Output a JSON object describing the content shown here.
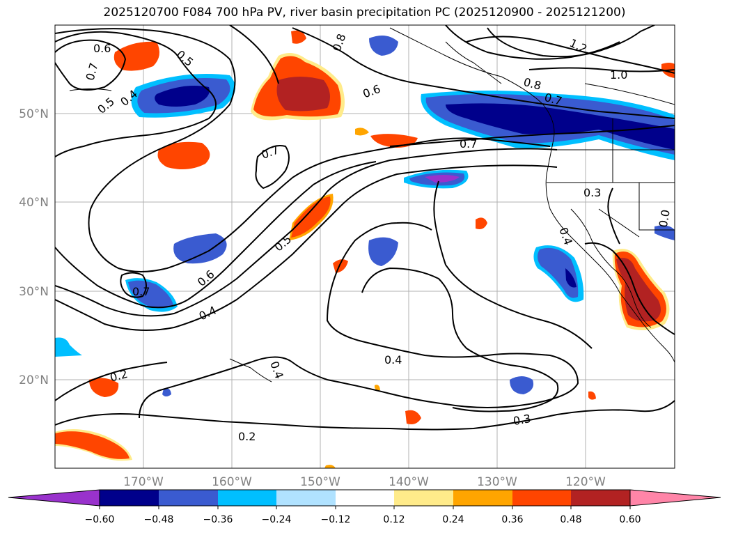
{
  "title": "2025120700 F084 700 hPa PV, river basin precipitation PC (2025120900 - 2025121200)",
  "map": {
    "lon_labels": [
      "170°W",
      "160°W",
      "150°W",
      "140°W",
      "130°W",
      "120°W"
    ],
    "lat_labels": [
      "50°N",
      "40°N",
      "30°N",
      "20°N"
    ],
    "contour_labels": [
      "0.6",
      "0.7",
      "0.5",
      "0.4",
      "0.5",
      "0.8",
      "0.6",
      "1.2",
      "1.0",
      "0.8",
      "0.7",
      "0.7",
      "0.7",
      "0.3",
      "0.5",
      "0.4",
      "0.6",
      "0.7",
      "0.4",
      "0.2",
      "0.4",
      "0.4",
      "0.3",
      "0.2",
      "0.0"
    ],
    "colors": {
      "neg_extreme": "#9932cc",
      "neg_060": "#00008b",
      "neg_048": "#3a5bd0",
      "neg_036": "#00bfff",
      "neg_024": "#b0e2ff",
      "pos_012": "#ffeb8a",
      "pos_024": "#ffa500",
      "pos_036": "#ff4500",
      "pos_048": "#b22222",
      "pos_extreme": "#ff85a8"
    }
  },
  "colorbar": {
    "ticks": [
      "−0.60",
      "−0.48",
      "−0.36",
      "−0.24",
      "−0.12",
      "0.12",
      "0.24",
      "0.36",
      "0.48",
      "0.60"
    ],
    "segments": [
      "#9932cc",
      "#00008b",
      "#3a5bd0",
      "#00bfff",
      "#b0e2ff",
      "#ffffff",
      "#ffeb8a",
      "#ffa500",
      "#ff4500",
      "#b22222",
      "#ff85a8"
    ]
  }
}
